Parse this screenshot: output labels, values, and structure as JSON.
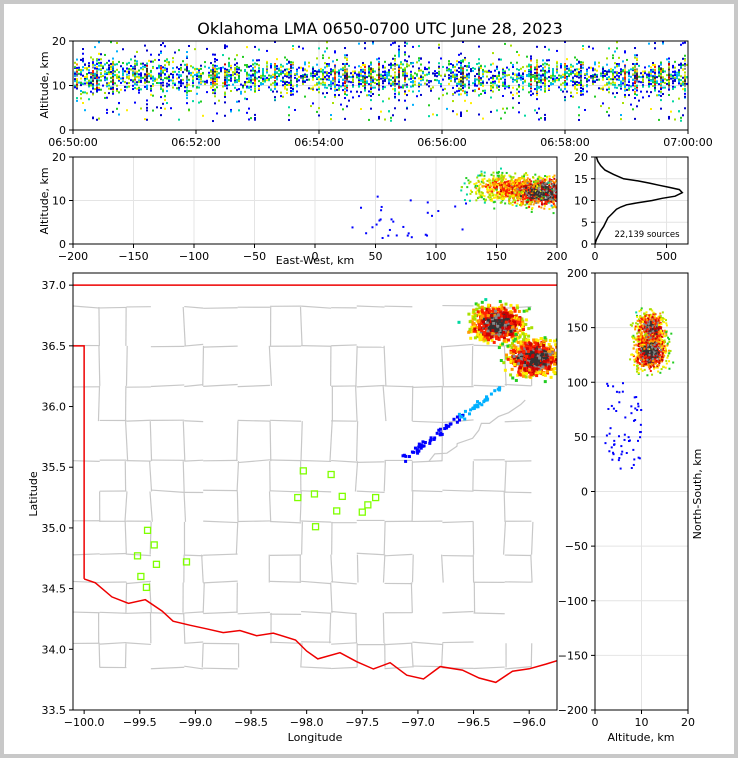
{
  "chart_data": [
    {
      "type": "heatmap",
      "panel": "altitude-vs-time",
      "title": "Oklahoma LMA 0650-0700 UTC June 28, 2023",
      "ylabel": "Altitude, km",
      "xlim": [
        "06:50:00",
        "07:00:00"
      ],
      "ylim": [
        0,
        20
      ],
      "xticks": [
        "06:50:00",
        "06:52:00",
        "06:54:00",
        "06:56:00",
        "06:58:00",
        "07:00:00"
      ],
      "yticks": [
        0,
        10,
        20
      ],
      "core_altitude_km": [
        8,
        16
      ],
      "grid": true
    },
    {
      "type": "heatmap",
      "panel": "altitude-vs-east-west",
      "xlabel": "East-West, km",
      "ylabel": "Altitude, km",
      "xlim": [
        -200,
        200
      ],
      "ylim": [
        0,
        20
      ],
      "xticks": [
        -200,
        -150,
        -100,
        -50,
        0,
        50,
        100,
        150,
        200
      ],
      "yticks": [
        0,
        10,
        20
      ],
      "cores": [
        {
          "x_km": 190,
          "altitude_km": 12,
          "weight": 1.0
        },
        {
          "x_km": 160,
          "altitude_km": 13,
          "weight": 0.7
        }
      ],
      "grid": true
    },
    {
      "type": "line",
      "panel": "altitude-histogram",
      "annotation": "22,139 sources",
      "xlim": [
        0,
        650
      ],
      "ylim": [
        0,
        20
      ],
      "xticks": [
        0,
        500
      ],
      "yticks": [
        0,
        5,
        10,
        15,
        20
      ],
      "x": [
        0,
        10,
        25,
        40,
        60,
        75,
        90,
        120,
        150,
        180,
        220,
        300,
        400,
        470,
        560,
        610,
        590,
        520,
        450,
        380,
        300,
        200,
        130,
        70,
        40,
        20,
        10
      ],
      "y": [
        0,
        1,
        2,
        3,
        4,
        5,
        6,
        7,
        8,
        8.5,
        9,
        9.5,
        10,
        10.5,
        11,
        11.8,
        12.5,
        13,
        13.5,
        14,
        14.5,
        15,
        16,
        17,
        18,
        19,
        20
      ]
    },
    {
      "type": "scatter",
      "panel": "plan-view",
      "xlabel": "Longitude",
      "ylabel": "Latitude",
      "xlim": [
        -100.1,
        -95.75
      ],
      "ylim": [
        33.5,
        37.1
      ],
      "xticks": [
        -100.0,
        -99.5,
        -99.0,
        -98.5,
        -98.0,
        -97.5,
        -97.0,
        -96.5,
        -96.0
      ],
      "yticks": [
        33.5,
        34.0,
        34.5,
        35.0,
        35.5,
        36.0,
        36.5,
        37.0
      ],
      "stations": [
        {
          "lon": -98.03,
          "lat": 35.47
        },
        {
          "lon": -97.78,
          "lat": 35.44
        },
        {
          "lon": -98.08,
          "lat": 35.25
        },
        {
          "lon": -97.93,
          "lat": 35.28
        },
        {
          "lon": -97.68,
          "lat": 35.26
        },
        {
          "lon": -97.38,
          "lat": 35.25
        },
        {
          "lon": -97.73,
          "lat": 35.14
        },
        {
          "lon": -97.5,
          "lat": 35.13
        },
        {
          "lon": -97.45,
          "lat": 35.19
        },
        {
          "lon": -97.92,
          "lat": 35.01
        },
        {
          "lon": -99.43,
          "lat": 34.98
        },
        {
          "lon": -99.37,
          "lat": 34.86
        },
        {
          "lon": -99.52,
          "lat": 34.77
        },
        {
          "lon": -99.35,
          "lat": 34.7
        },
        {
          "lon": -99.08,
          "lat": 34.72
        },
        {
          "lon": -99.49,
          "lat": 34.6
        },
        {
          "lon": -99.44,
          "lat": 34.51
        }
      ],
      "cores": [
        {
          "lon": -96.28,
          "lat": 36.68,
          "weight": 1.0
        },
        {
          "lon": -95.95,
          "lat": 36.4,
          "weight": 1.0
        }
      ]
    },
    {
      "type": "heatmap",
      "panel": "north-south-vs-altitude",
      "xlabel": "Altitude, km",
      "ylabel": "North-South, km",
      "xlim": [
        0,
        20
      ],
      "ylim": [
        -200,
        200
      ],
      "xticks": [
        0,
        10,
        20
      ],
      "yticks": [
        -200,
        -150,
        -100,
        -50,
        0,
        50,
        100,
        150,
        200
      ],
      "cores": [
        {
          "altitude_km": 12,
          "y_km": 148,
          "weight": 0.9
        },
        {
          "altitude_km": 12,
          "y_km": 128,
          "weight": 1.0
        }
      ],
      "grid": true
    }
  ]
}
